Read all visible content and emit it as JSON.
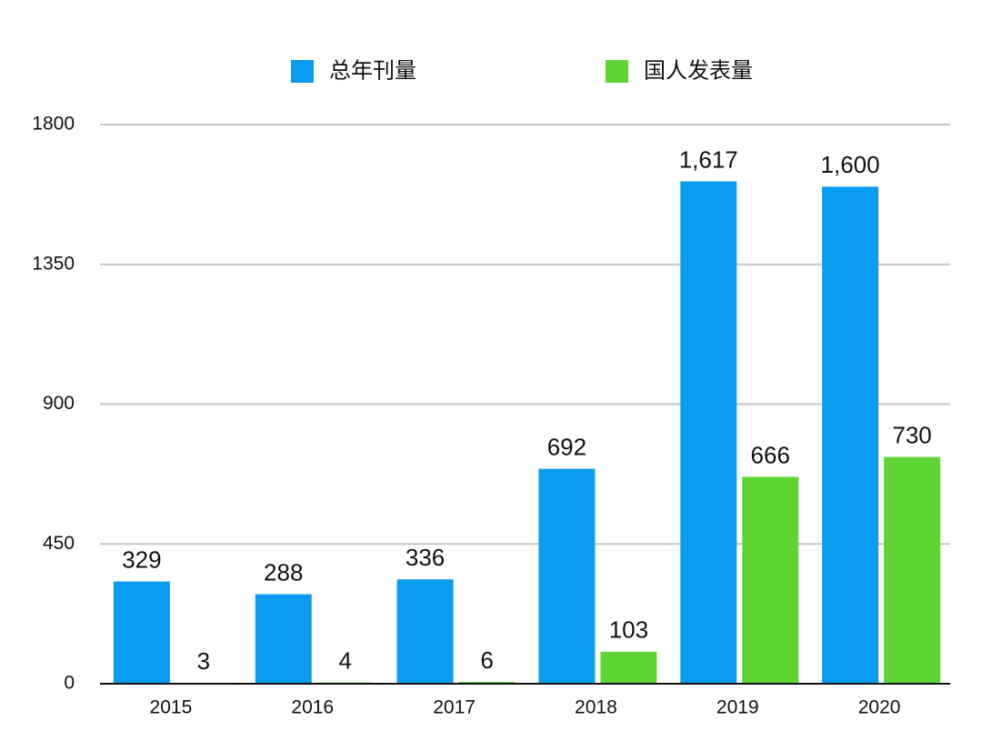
{
  "chart_data": {
    "type": "bar",
    "categories": [
      "2015",
      "2016",
      "2017",
      "2018",
      "2019",
      "2020"
    ],
    "series": [
      {
        "name": "总年刊量",
        "color": "#0a9cf0",
        "values": [
          329,
          288,
          336,
          692,
          1617,
          1600
        ],
        "value_labels": [
          "329",
          "288",
          "336",
          "692",
          "1,617",
          "1,600"
        ]
      },
      {
        "name": "国人发表量",
        "color": "#5fd535",
        "values": [
          3,
          4,
          6,
          103,
          666,
          730
        ]
      }
    ],
    "ylim": [
      0,
      1800
    ],
    "yticks": [
      0,
      450,
      900,
      1350,
      1800
    ],
    "grid": true,
    "legend": "top"
  }
}
